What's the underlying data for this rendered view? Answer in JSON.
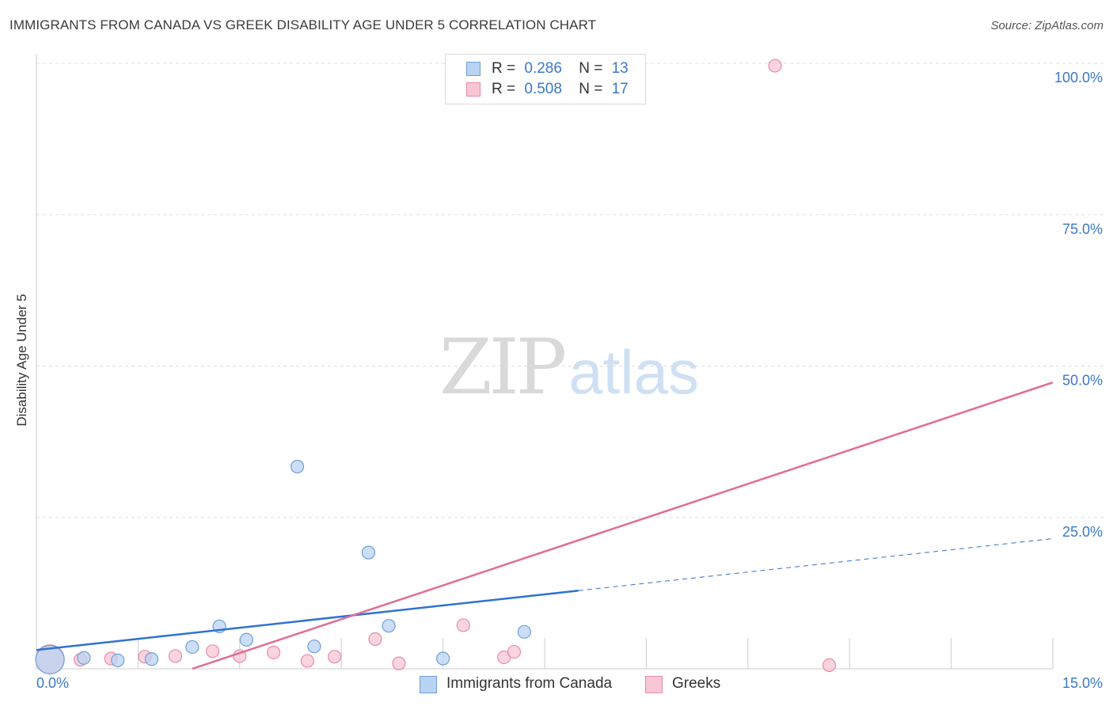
{
  "header": {
    "title": "IMMIGRANTS FROM CANADA VS GREEK DISABILITY AGE UNDER 5 CORRELATION CHART",
    "source": "Source: ZipAtlas.com"
  },
  "watermark": {
    "zip": "ZIP",
    "atlas": "atlas"
  },
  "legend": {
    "rows": [
      {
        "r_label": "R =",
        "r_value": "0.286",
        "n_label": "N =",
        "n_value": "13"
      },
      {
        "r_label": "R =",
        "r_value": "0.508",
        "n_label": "N =",
        "n_value": "17"
      }
    ]
  },
  "bottom_legend": [
    "Immigrants from Canada",
    "Greeks"
  ],
  "colors": {
    "blue_fill": "#b9d3f2",
    "blue_stroke": "#6f9fd8",
    "blue_line": "#2f72d0",
    "pink_fill": "#f8c6d4",
    "pink_stroke": "#e88ca8",
    "pink_line": "#e06c97",
    "tick_label": "#3a78c9",
    "grid": "#dddddd"
  },
  "chart_data": {
    "type": "scatter",
    "title": "IMMIGRANTS FROM CANADA VS GREEK DISABILITY AGE UNDER 5 CORRELATION CHART",
    "xlabel": "",
    "ylabel": "Disability Age Under 5",
    "xlim": [
      0,
      15
    ],
    "ylim": [
      0,
      100
    ],
    "x_tick_labels": [
      "0.0%",
      "15.0%"
    ],
    "y_ticks": [
      25,
      50,
      75,
      100
    ],
    "y_tick_labels": [
      "25.0%",
      "50.0%",
      "75.0%",
      "100.0%"
    ],
    "grid": true,
    "legend_placement": "top-center",
    "series": [
      {
        "name": "Immigrants from Canada",
        "color": "#6f9fd8",
        "points": [
          {
            "x": 0.2,
            "y": 1.5,
            "big": true
          },
          {
            "x": 0.7,
            "y": 1.8
          },
          {
            "x": 1.2,
            "y": 1.4
          },
          {
            "x": 1.7,
            "y": 1.6
          },
          {
            "x": 2.3,
            "y": 3.6
          },
          {
            "x": 2.7,
            "y": 7.0
          },
          {
            "x": 3.1,
            "y": 4.8
          },
          {
            "x": 3.85,
            "y": 33.4
          },
          {
            "x": 4.1,
            "y": 3.7
          },
          {
            "x": 4.9,
            "y": 19.2
          },
          {
            "x": 5.2,
            "y": 7.1
          },
          {
            "x": 6.0,
            "y": 1.7
          },
          {
            "x": 7.2,
            "y": 6.1
          }
        ],
        "trend": {
          "x0": 0,
          "y0": 3.1,
          "x_solid_end": 8.0,
          "x1": 15,
          "y1": 21.5
        }
      },
      {
        "name": "Greeks",
        "color": "#e88ca8",
        "points": [
          {
            "x": 0.2,
            "y": 1.6,
            "big": true
          },
          {
            "x": 0.65,
            "y": 1.5
          },
          {
            "x": 1.1,
            "y": 1.7
          },
          {
            "x": 1.6,
            "y": 2.0
          },
          {
            "x": 2.05,
            "y": 2.1
          },
          {
            "x": 2.6,
            "y": 2.9
          },
          {
            "x": 3.0,
            "y": 2.1
          },
          {
            "x": 3.5,
            "y": 2.7
          },
          {
            "x": 4.0,
            "y": 1.3
          },
          {
            "x": 4.4,
            "y": 2.0
          },
          {
            "x": 5.0,
            "y": 4.9
          },
          {
            "x": 5.35,
            "y": 0.9
          },
          {
            "x": 6.3,
            "y": 7.2
          },
          {
            "x": 6.9,
            "y": 1.9
          },
          {
            "x": 7.05,
            "y": 2.8
          },
          {
            "x": 10.9,
            "y": 99.6
          },
          {
            "x": 11.7,
            "y": 0.6
          }
        ],
        "trend": {
          "x0": 2.3,
          "y0": 0,
          "x1": 15,
          "y1": 47.3
        }
      }
    ]
  }
}
